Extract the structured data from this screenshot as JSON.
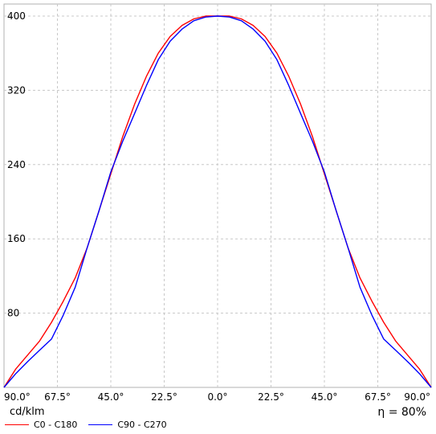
{
  "chart_data": {
    "type": "line",
    "unit_label": "cd/klm",
    "efficiency_label": "η = 80%",
    "ylim": [
      0,
      400
    ],
    "y_ticks": [
      "80",
      "160",
      "240",
      "320",
      "400"
    ],
    "x_ticks": [
      "90.0°",
      "67.5°",
      "45.0°",
      "22.5°",
      "0.0°",
      "22.5°",
      "45.0°",
      "67.5°",
      "90.0°"
    ],
    "xlim": [
      -90,
      90
    ],
    "grid": true,
    "legend_position": "bottom-left",
    "series": [
      {
        "name": "C0 - C180",
        "color": "#ff0000",
        "x": [
          -90,
          -85,
          -80,
          -75,
          -70,
          -65,
          -60,
          -55,
          -50,
          -45,
          -40,
          -35,
          -30,
          -25,
          -20,
          -15,
          -10,
          -5,
          0,
          5,
          10,
          15,
          20,
          25,
          30,
          35,
          40,
          45,
          50,
          55,
          60,
          65,
          70,
          75,
          80,
          85,
          90
        ],
        "values": [
          0,
          20,
          35,
          50,
          70,
          93,
          118,
          150,
          190,
          230,
          270,
          305,
          335,
          360,
          378,
          390,
          397,
          400,
          400,
          400,
          397,
          390,
          378,
          360,
          335,
          305,
          270,
          230,
          190,
          150,
          118,
          93,
          70,
          50,
          35,
          20,
          0
        ]
      },
      {
        "name": "C90 - C270",
        "color": "#0000ff",
        "x": [
          -90,
          -85,
          -80,
          -75,
          -70,
          -65,
          -60,
          -55,
          -50,
          -45,
          -40,
          -35,
          -30,
          -25,
          -20,
          -15,
          -10,
          -5,
          0,
          5,
          10,
          15,
          20,
          25,
          30,
          35,
          40,
          45,
          50,
          55,
          60,
          65,
          70,
          75,
          80,
          85,
          90
        ],
        "values": [
          0,
          15,
          28,
          40,
          52,
          78,
          108,
          150,
          190,
          232,
          265,
          295,
          325,
          353,
          373,
          386,
          395,
          399,
          400,
          399,
          395,
          386,
          373,
          353,
          325,
          295,
          265,
          232,
          190,
          150,
          108,
          78,
          52,
          40,
          28,
          15,
          0
        ]
      }
    ]
  }
}
